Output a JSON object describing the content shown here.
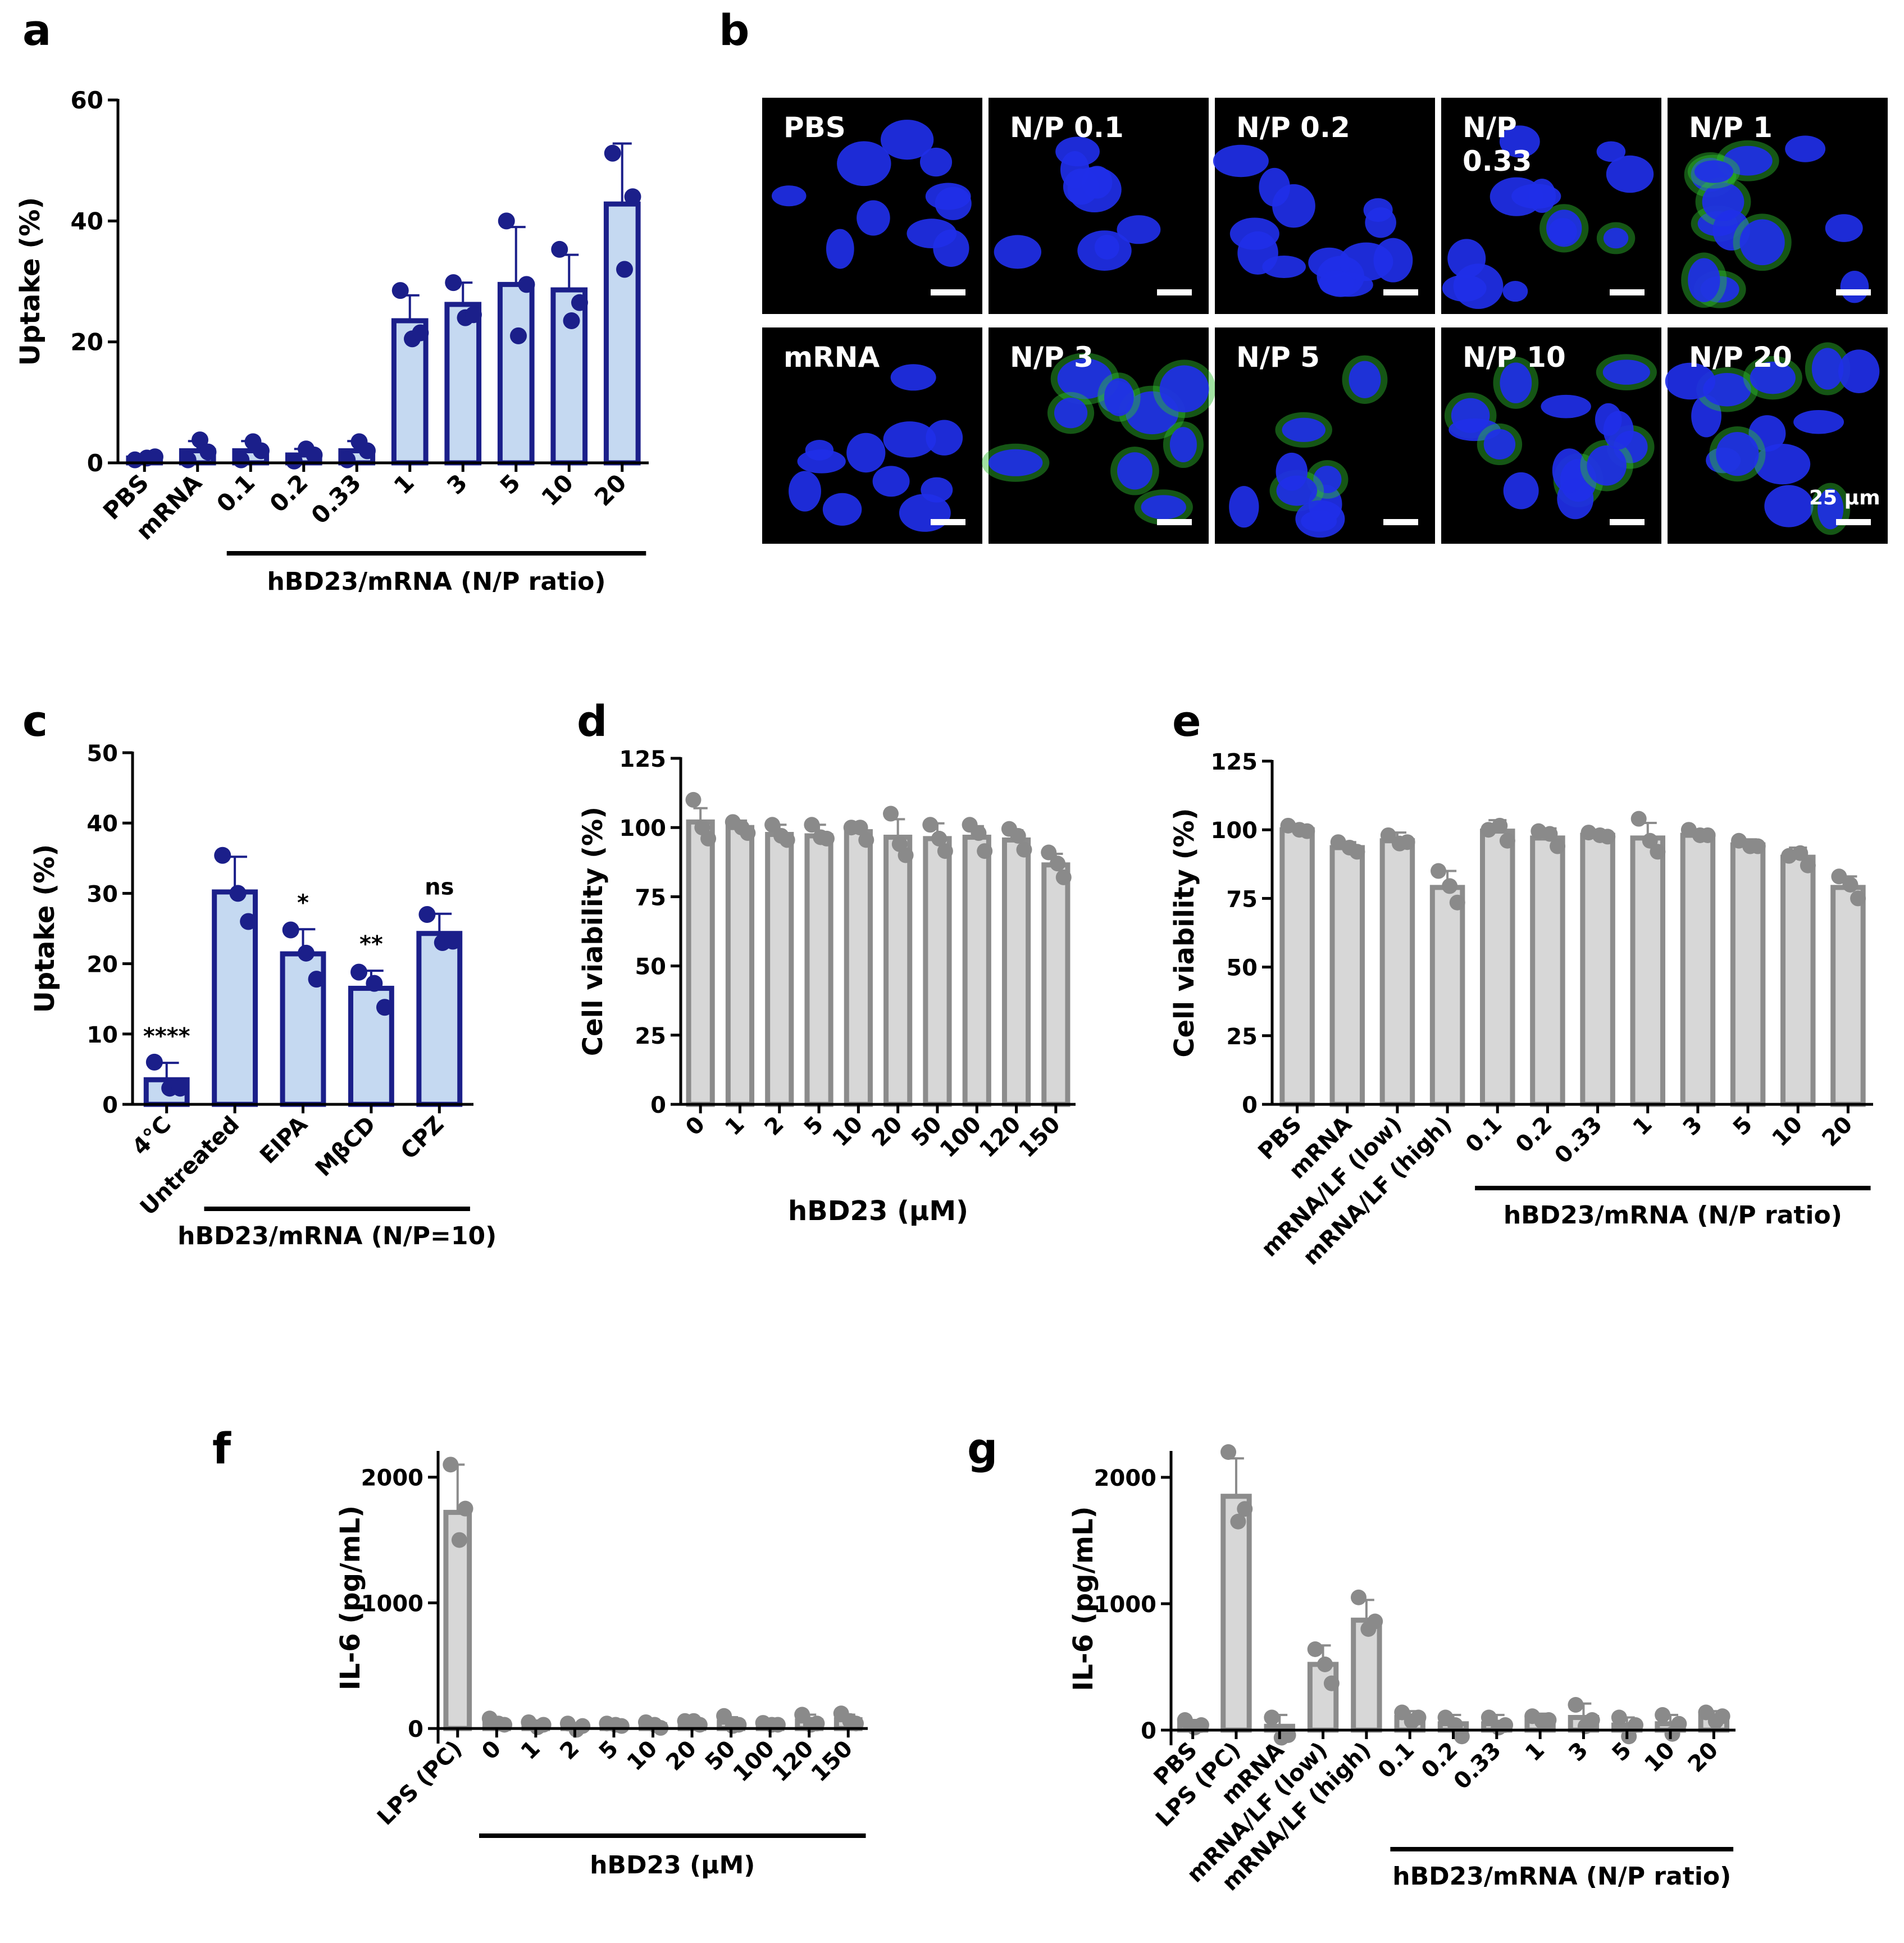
{
  "panel_labels": [
    "a",
    "b",
    "c",
    "d",
    "e",
    "f",
    "g"
  ],
  "colors": {
    "blue_fill": "#c5d9f1",
    "blue_edge": "#1b1f8a",
    "gray_fill": "#d7d7d7",
    "gray_edge": "#8c8c8c",
    "micro_bg": "#000000",
    "nuclei": "#1f2fe8",
    "signal": "#2fbf2f",
    "micro_text": "#ffffff"
  },
  "micrographs": {
    "scale_bar_label": "25 µm",
    "tiles": [
      {
        "label": "PBS",
        "green": 0
      },
      {
        "label": "N/P 0.1",
        "green": 0
      },
      {
        "label": "N/P 0.2",
        "green": 0
      },
      {
        "label": "N/P\n0.33",
        "green": 0.2
      },
      {
        "label": "N/P 1",
        "green": 0.6
      },
      {
        "label": "mRNA",
        "green": 0
      },
      {
        "label": "N/P 3",
        "green": 0.7
      },
      {
        "label": "N/P 5",
        "green": 0.6
      },
      {
        "label": "N/P 10",
        "green": 0.6
      },
      {
        "label": "N/P 20",
        "green": 0.6
      }
    ]
  },
  "chart_data": [
    {
      "panel": "a",
      "type": "bar",
      "style": "blue",
      "ylabel": "Uptake (%)",
      "ylim": [
        0,
        60
      ],
      "yticks": [
        0,
        20,
        40,
        60
      ],
      "categories": [
        "PBS",
        "mRNA",
        "0.1",
        "0.2",
        "0.33",
        "1",
        "3",
        "5",
        "10",
        "20"
      ],
      "values": [
        0.8,
        2.0,
        2.0,
        1.3,
        2.0,
        23.5,
        26.2,
        29.5,
        28.6,
        42.8
      ],
      "errors": [
        0.2,
        1.6,
        1.6,
        1.0,
        1.6,
        4.2,
        3.6,
        9.5,
        5.8,
        10.0
      ],
      "points": [
        [
          0.5,
          0.8,
          1.0
        ],
        [
          0.5,
          3.8,
          1.8
        ],
        [
          0.5,
          3.5,
          2.0
        ],
        [
          0.3,
          2.3,
          1.3
        ],
        [
          0.5,
          3.5,
          2.0
        ],
        [
          28.5,
          20.5,
          21.5
        ],
        [
          29.8,
          24.0,
          24.5
        ],
        [
          40.0,
          21.0,
          29.5
        ],
        [
          35.3,
          23.5,
          26.5
        ],
        [
          51.2,
          32.0,
          44.0
        ]
      ],
      "group_bar": {
        "from": 2,
        "to": 9,
        "label": "hBD23/mRNA (N/P ratio)"
      }
    },
    {
      "panel": "c",
      "type": "bar",
      "style": "blue",
      "ylabel": "Uptake (%)",
      "ylim": [
        0,
        50
      ],
      "yticks": [
        0,
        10,
        20,
        30,
        40,
        50
      ],
      "categories": [
        "4°C",
        "Untreated",
        "EIPA",
        "MβCD",
        "CPZ"
      ],
      "values": [
        3.5,
        30.2,
        21.4,
        16.5,
        24.3
      ],
      "errors": [
        2.4,
        5.0,
        3.5,
        2.5,
        2.8
      ],
      "points": [
        [
          6.0,
          2.3,
          2.3
        ],
        [
          35.4,
          30.0,
          26.0
        ],
        [
          24.8,
          21.5,
          17.8
        ],
        [
          18.8,
          17.2,
          13.8
        ],
        [
          27.0,
          23.0,
          23.2
        ]
      ],
      "annotations": [
        "****",
        "",
        "*",
        "**",
        "ns"
      ],
      "group_bar": {
        "from": 1,
        "to": 4,
        "label": "hBD23/mRNA (N/P=10)"
      }
    },
    {
      "panel": "d",
      "type": "bar",
      "style": "gray",
      "ylabel": "Cell viability (%)",
      "xlabel": "hBD23 (μM)",
      "ylim": [
        0,
        125
      ],
      "yticks": [
        0,
        25,
        50,
        75,
        100,
        125
      ],
      "categories": [
        "0",
        "1",
        "2",
        "5",
        "10",
        "20",
        "50",
        "100",
        "120",
        "150"
      ],
      "values": [
        102,
        100,
        97.5,
        97,
        98.5,
        96.5,
        96,
        96.5,
        95.5,
        86.5
      ],
      "errors": [
        5,
        2.5,
        3.5,
        4,
        2.5,
        6.5,
        5.5,
        4,
        3.5,
        4
      ],
      "points": [
        [
          110,
          100,
          96
        ],
        [
          102,
          100,
          98
        ],
        [
          101,
          97,
          95.5
        ],
        [
          101,
          96.5,
          96
        ],
        [
          100,
          100,
          95.5
        ],
        [
          105,
          94,
          90
        ],
        [
          101,
          96,
          91.5
        ],
        [
          101,
          98,
          91.5
        ],
        [
          99.5,
          97,
          92
        ],
        [
          91,
          87,
          82
        ]
      ]
    },
    {
      "panel": "e",
      "type": "bar",
      "style": "gray",
      "ylabel": "Cell viability (%)",
      "ylim": [
        0,
        125
      ],
      "yticks": [
        0,
        25,
        50,
        75,
        100,
        125
      ],
      "categories": [
        "PBS",
        "mRNA",
        "mRNA/LF (low)",
        "mRNA/LF (high)",
        "0.1",
        "0.2",
        "0.33",
        "1",
        "3",
        "5",
        "10",
        "20"
      ],
      "values": [
        100,
        93.5,
        96,
        79,
        99.5,
        97,
        98,
        97,
        98,
        94.5,
        90,
        79
      ],
      "errors": [
        1.5,
        2,
        3,
        6,
        4,
        3.5,
        1.5,
        5.5,
        2,
        2,
        3.5,
        4
      ],
      "points": [
        [
          101.5,
          100,
          99.5
        ],
        [
          95.5,
          93.5,
          92
        ],
        [
          98,
          95,
          95.5
        ],
        [
          85,
          79.5,
          73.5
        ],
        [
          100,
          101.5,
          96
        ],
        [
          99.5,
          98.5,
          94
        ],
        [
          99,
          98,
          97.5
        ],
        [
          104,
          96,
          92
        ],
        [
          100,
          98,
          98
        ],
        [
          96,
          94,
          94
        ],
        [
          90.5,
          91.5,
          87
        ],
        [
          83,
          80,
          75
        ]
      ],
      "group_bar": {
        "from": 4,
        "to": 11,
        "label": "hBD23/mRNA (N/P ratio)"
      }
    },
    {
      "panel": "f",
      "type": "bar",
      "style": "gray",
      "ylabel": "IL-6 (pg/mL)",
      "ylim": [
        -120,
        2200
      ],
      "yticks": [
        0,
        1000,
        2000
      ],
      "categories": [
        "LPS (PC)",
        "0",
        "1",
        "2",
        "5",
        "10",
        "20",
        "50",
        "100",
        "120",
        "150"
      ],
      "values": [
        1720,
        50,
        25,
        20,
        30,
        30,
        45,
        50,
        35,
        60,
        70
      ],
      "errors": [
        380,
        20,
        15,
        15,
        10,
        25,
        20,
        40,
        15,
        50,
        40
      ],
      "points": [
        [
          2100,
          1500,
          1750
        ],
        [
          80,
          40,
          30
        ],
        [
          50,
          10,
          30
        ],
        [
          40,
          -10,
          20
        ],
        [
          40,
          30,
          20
        ],
        [
          50,
          30,
          5
        ],
        [
          60,
          60,
          30
        ],
        [
          100,
          20,
          30
        ],
        [
          45,
          30,
          30
        ],
        [
          110,
          30,
          40
        ],
        [
          120,
          60,
          40
        ]
      ],
      "group_bar": {
        "from": 1,
        "to": 10,
        "label": "hBD23 (μM)"
      }
    },
    {
      "panel": "g",
      "type": "bar",
      "style": "gray",
      "ylabel": "IL-6 (pg/mL)",
      "ylim": [
        -120,
        2200
      ],
      "yticks": [
        0,
        1000,
        2000
      ],
      "categories": [
        "PBS",
        "LPS (PC)",
        "mRNA",
        "mRNA/LF (low)",
        "mRNA/LF (high)",
        "0.1",
        "0.2",
        "0.33",
        "1",
        "3",
        "5",
        "10",
        "20"
      ],
      "values": [
        50,
        1850,
        30,
        520,
        870,
        100,
        50,
        50,
        90,
        100,
        40,
        50,
        110
      ],
      "errors": [
        30,
        300,
        90,
        150,
        160,
        50,
        70,
        70,
        40,
        110,
        60,
        70,
        40
      ],
      "points": [
        [
          80,
          20,
          40
        ],
        [
          2200,
          1650,
          1750
        ],
        [
          100,
          -60,
          -40
        ],
        [
          640,
          520,
          370
        ],
        [
          1050,
          800,
          860
        ],
        [
          140,
          70,
          100
        ],
        [
          100,
          40,
          -50
        ],
        [
          100,
          20,
          40
        ],
        [
          110,
          70,
          80
        ],
        [
          200,
          30,
          80
        ],
        [
          100,
          -50,
          40
        ],
        [
          120,
          -30,
          50
        ],
        [
          140,
          70,
          110
        ]
      ],
      "group_bar": {
        "from": 5,
        "to": 12,
        "label": "hBD23/mRNA (N/P ratio)"
      }
    }
  ]
}
